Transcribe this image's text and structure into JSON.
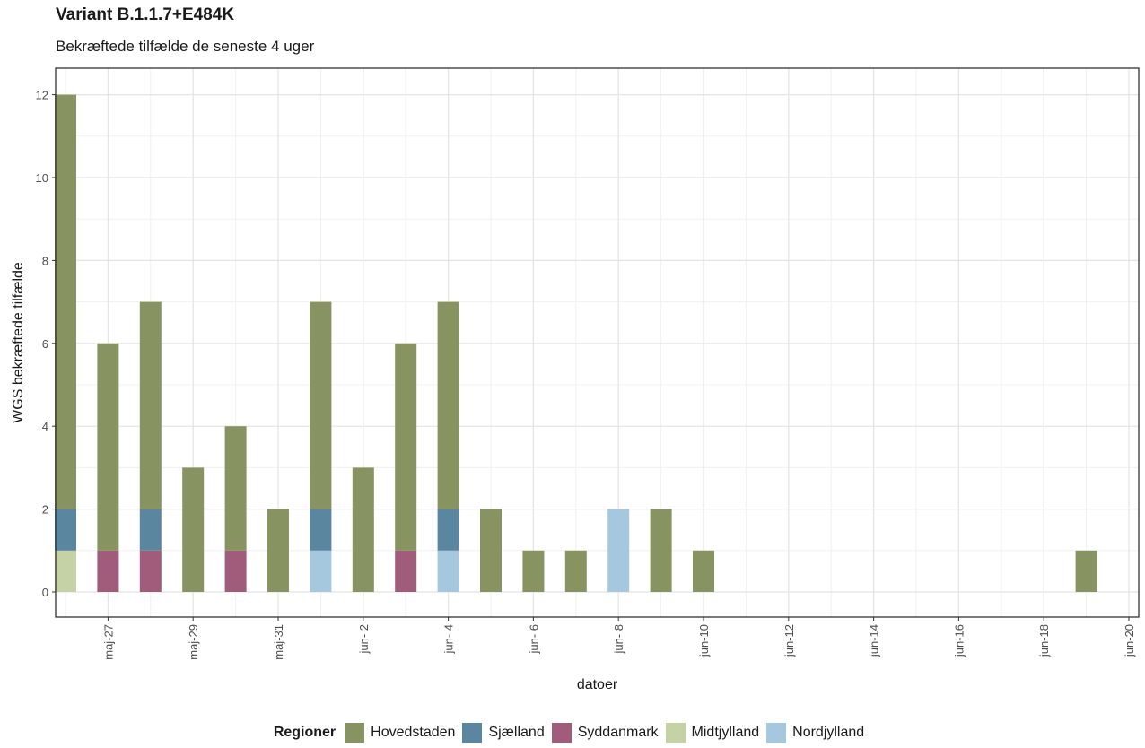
{
  "chart_data": {
    "type": "bar",
    "stacked": true,
    "title": "Variant B.1.1.7+E484K",
    "subtitle": "Bekræftede tilfælde de seneste 4 uger",
    "xlabel": "datoer",
    "ylabel": "WGS bekræftede tilfælde",
    "ylim": [
      0,
      12
    ],
    "yticks": [
      0,
      2,
      4,
      6,
      8,
      10,
      12
    ],
    "grid": true,
    "legend_title": "Regioner",
    "legend_position": "bottom",
    "x_dates": [
      "2021-05-26",
      "2021-05-27",
      "2021-05-28",
      "2021-05-29",
      "2021-05-30",
      "2021-05-31",
      "2021-06-01",
      "2021-06-02",
      "2021-06-03",
      "2021-06-04",
      "2021-06-05",
      "2021-06-06",
      "2021-06-07",
      "2021-06-08",
      "2021-06-09",
      "2021-06-10",
      "2021-06-19"
    ],
    "x_range": [
      "2021-05-26",
      "2021-06-20"
    ],
    "x_tick_dates": [
      "2021-05-27",
      "2021-05-29",
      "2021-05-31",
      "2021-06-02",
      "2021-06-04",
      "2021-06-06",
      "2021-06-08",
      "2021-06-10",
      "2021-06-12",
      "2021-06-14",
      "2021-06-16",
      "2021-06-18",
      "2021-06-20"
    ],
    "x_tick_labels": [
      "maj-27",
      "maj-29",
      "maj-31",
      "jun- 2",
      "jun- 4",
      "jun- 6",
      "jun- 8",
      "jun-10",
      "jun-12",
      "jun-14",
      "jun-16",
      "jun-18",
      "jun-20"
    ],
    "series": [
      {
        "name": "Midtjylland",
        "color": "#c4d2a5",
        "values": [
          1,
          0,
          0,
          0,
          0,
          0,
          0,
          0,
          0,
          0,
          0,
          0,
          0,
          0,
          0,
          0,
          0
        ]
      },
      {
        "name": "Nordjylland",
        "color": "#a5c8df",
        "values": [
          0,
          0,
          0,
          0,
          0,
          0,
          1,
          0,
          0,
          1,
          0,
          0,
          0,
          2,
          0,
          0,
          0
        ]
      },
      {
        "name": "Syddanmark",
        "color": "#a05c7b",
        "values": [
          0,
          1,
          1,
          0,
          1,
          0,
          0,
          0,
          1,
          0,
          0,
          0,
          0,
          0,
          0,
          0,
          0
        ]
      },
      {
        "name": "Sjælland",
        "color": "#5b869f",
        "values": [
          1,
          0,
          1,
          0,
          0,
          0,
          1,
          0,
          0,
          1,
          0,
          0,
          0,
          0,
          0,
          0,
          0
        ]
      },
      {
        "name": "Hovedstaden",
        "color": "#879360",
        "values": [
          10,
          5,
          5,
          3,
          3,
          2,
          5,
          3,
          5,
          5,
          2,
          1,
          1,
          0,
          2,
          1,
          1
        ]
      }
    ],
    "legend_order": [
      "Hovedstaden",
      "Sjælland",
      "Syddanmark",
      "Midtjylland",
      "Nordjylland"
    ]
  }
}
